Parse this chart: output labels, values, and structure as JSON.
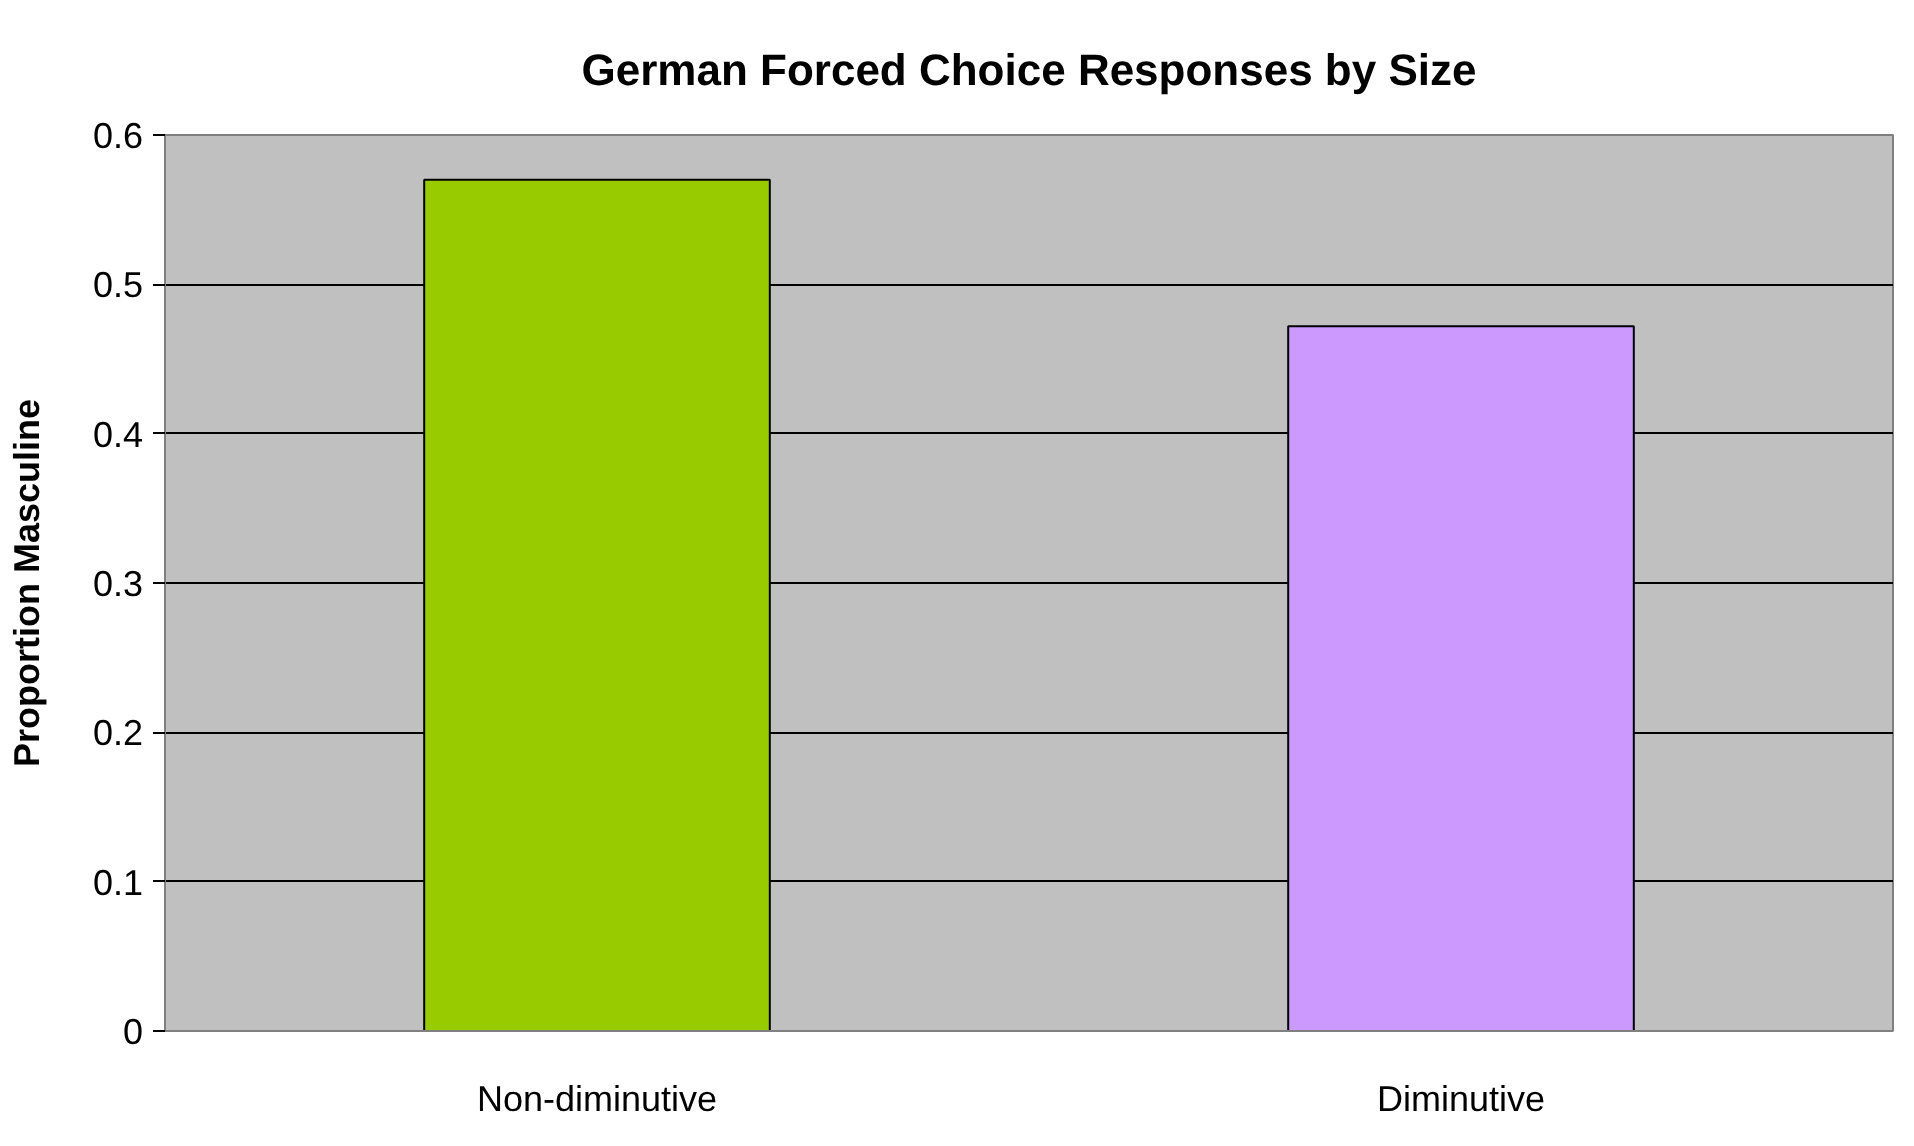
{
  "chart_data": {
    "type": "bar",
    "title": "German Forced Choice Responses by Size",
    "ylabel": "Proportion Masculine",
    "categories": [
      "Non-diminutive",
      "Diminutive"
    ],
    "values": [
      0.57,
      0.472
    ],
    "colors": [
      "#99cc00",
      "#cc99ff"
    ],
    "ylim": [
      0,
      0.6
    ],
    "yticks": [
      0,
      0.1,
      0.2,
      0.3,
      0.4,
      0.5,
      0.6
    ],
    "grid": "y"
  }
}
